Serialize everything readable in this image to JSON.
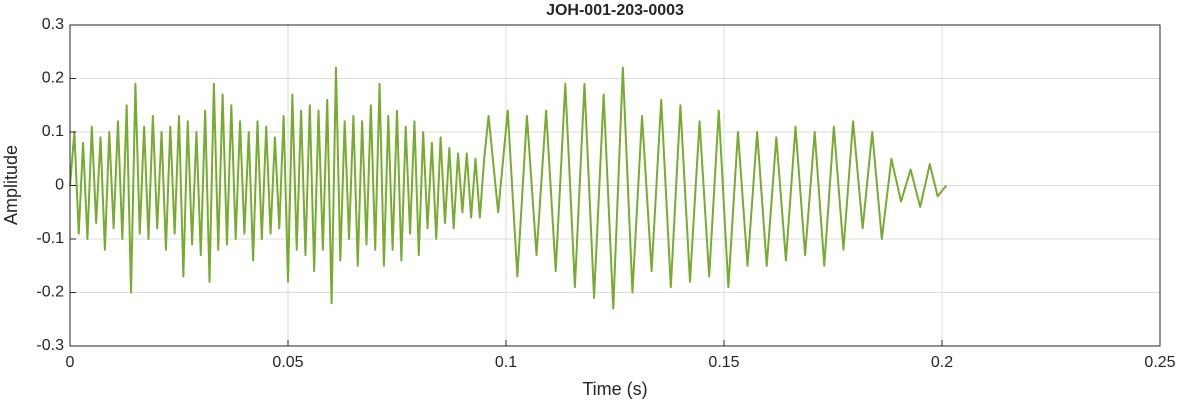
{
  "chart_data": {
    "type": "line",
    "title": "JOH-001-203-0003",
    "x_label": "Time (s)",
    "y_label": "Amplitude",
    "color": "#77ac30",
    "grid": true,
    "xlim": [
      0,
      0.25
    ],
    "xticks": [
      0,
      0.05,
      0.1,
      0.15,
      0.2,
      0.25
    ],
    "ylim": [
      -0.3,
      0.3
    ],
    "yticks": [
      -0.3,
      -0.2,
      -0.1,
      0,
      0.1,
      0.2,
      0.3
    ],
    "x": [
      0,
      0.001,
      0.002,
      0.003,
      0.004,
      0.005,
      0.006,
      0.007,
      0.008,
      0.009,
      0.01,
      0.011,
      0.012,
      0.013,
      0.014,
      0.015,
      0.016,
      0.017,
      0.018,
      0.019,
      0.02,
      0.021,
      0.022,
      0.023,
      0.024,
      0.025,
      0.026,
      0.027,
      0.028,
      0.029,
      0.03,
      0.031,
      0.032,
      0.033,
      0.034,
      0.035,
      0.036,
      0.037,
      0.038,
      0.039,
      0.04,
      0.041,
      0.042,
      0.043,
      0.044,
      0.045,
      0.046,
      0.047,
      0.048,
      0.049,
      0.05,
      0.051,
      0.052,
      0.053,
      0.054,
      0.055,
      0.056,
      0.057,
      0.058,
      0.059,
      0.06,
      0.061,
      0.062,
      0.063,
      0.064,
      0.065,
      0.066,
      0.067,
      0.068,
      0.069,
      0.07,
      0.071,
      0.072,
      0.073,
      0.074,
      0.075,
      0.076,
      0.077,
      0.078,
      0.079,
      0.08,
      0.081,
      0.082,
      0.083,
      0.084,
      0.085,
      0.086,
      0.087,
      0.088,
      0.089,
      0.09,
      0.091,
      0.092,
      0.093,
      0.094,
      0.095,
      0.096,
      0.0982,
      0.1004,
      0.1026,
      0.1048,
      0.107,
      0.1092,
      0.1114,
      0.1136,
      0.1158,
      0.118,
      0.1202,
      0.1224,
      0.1246,
      0.1268,
      0.129,
      0.1312,
      0.1334,
      0.1356,
      0.1378,
      0.14,
      0.1422,
      0.1444,
      0.1466,
      0.1488,
      0.151,
      0.1532,
      0.1554,
      0.1576,
      0.1598,
      0.162,
      0.1642,
      0.1664,
      0.1686,
      0.1708,
      0.173,
      0.1752,
      0.1774,
      0.1796,
      0.1818,
      0.184,
      0.1862,
      0.1884,
      0.1906,
      0.1928,
      0.195,
      0.1972,
      0.199,
      0.201
    ],
    "values": [
      0,
      0.1,
      -0.09,
      0.08,
      -0.1,
      0.11,
      -0.07,
      0.09,
      -0.12,
      0.1,
      -0.08,
      0.12,
      -0.1,
      0.15,
      -0.2,
      0.19,
      -0.09,
      0.11,
      -0.1,
      0.13,
      -0.08,
      0.1,
      -0.12,
      0.11,
      -0.09,
      0.13,
      -0.17,
      0.12,
      -0.11,
      0.1,
      -0.13,
      0.14,
      -0.18,
      0.19,
      -0.12,
      0.17,
      -0.11,
      0.15,
      -0.1,
      0.12,
      -0.09,
      0.1,
      -0.14,
      0.12,
      -0.1,
      0.11,
      -0.09,
      0.09,
      -0.08,
      0.13,
      -0.18,
      0.17,
      -0.12,
      0.14,
      -0.13,
      0.15,
      -0.16,
      0.14,
      -0.12,
      0.16,
      -0.22,
      0.22,
      -0.14,
      0.12,
      -0.1,
      0.13,
      -0.15,
      0.12,
      -0.11,
      0.15,
      -0.12,
      0.19,
      -0.15,
      0.13,
      -0.12,
      0.14,
      -0.14,
      0.11,
      -0.09,
      0.12,
      -0.13,
      0.1,
      -0.08,
      0.08,
      -0.1,
      0.09,
      -0.07,
      0.07,
      -0.08,
      0.06,
      -0.05,
      0.06,
      -0.06,
      0.05,
      -0.06,
      0.05,
      0.13,
      -0.05,
      0.14,
      -0.17,
      0.13,
      -0.13,
      0.14,
      -0.16,
      0.19,
      -0.19,
      0.19,
      -0.21,
      0.17,
      -0.23,
      0.22,
      -0.2,
      0.13,
      -0.16,
      0.16,
      -0.19,
      0.15,
      -0.18,
      0.12,
      -0.17,
      0.14,
      -0.19,
      0.1,
      -0.15,
      0.1,
      -0.15,
      0.09,
      -0.14,
      0.11,
      -0.13,
      0.1,
      -0.15,
      0.11,
      -0.12,
      0.12,
      -0.08,
      0.1,
      -0.1,
      0.05,
      -0.03,
      0.03,
      -0.04,
      0.04,
      -0.02,
      0
    ]
  }
}
